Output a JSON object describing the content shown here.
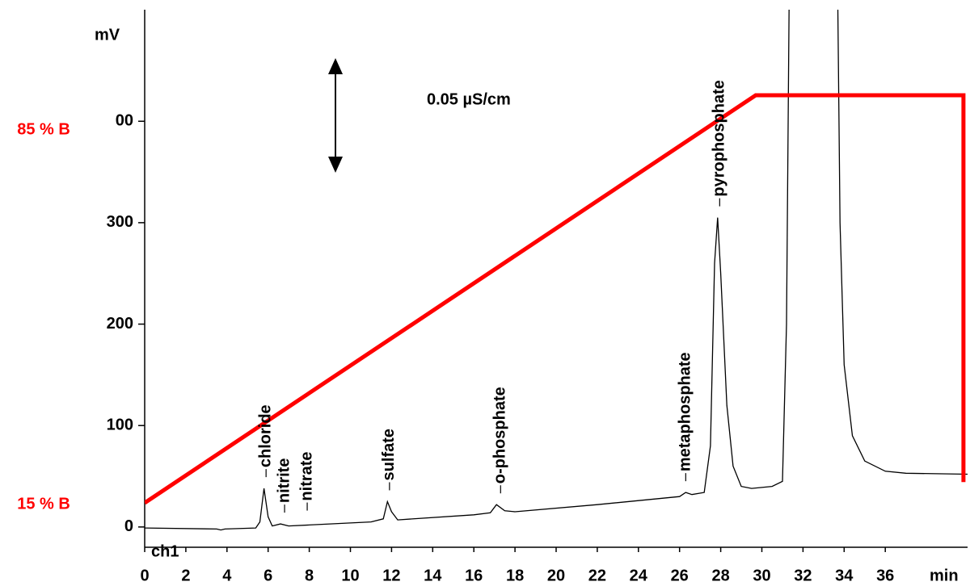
{
  "chart_data": {
    "type": "line",
    "y_label": "mV",
    "x_label": "min",
    "scale_label": "0.05 µS/cm",
    "xlim": [
      0,
      40
    ],
    "xticks": [
      0,
      2,
      4,
      6,
      8,
      10,
      12,
      14,
      16,
      18,
      20,
      22,
      24,
      26,
      28,
      30,
      32,
      34,
      36
    ],
    "ylim": [
      -20,
      510
    ],
    "yticks": [
      0,
      100,
      200,
      300,
      {
        "value": 400,
        "label": "00"
      }
    ],
    "y2lim": [
      7,
      107.5
    ],
    "y2ticks": [
      {
        "value": 15,
        "label": "15 % B"
      },
      {
        "value": 85,
        "label": "85 % B"
      }
    ],
    "series": [
      {
        "name": "ch1",
        "color": "#000000",
        "x": [
          0,
          3.5,
          3.7,
          3.9,
          5.4,
          5.6,
          5.8,
          6.0,
          6.2,
          6.6,
          7,
          8,
          11,
          11.6,
          11.8,
          12.0,
          12.3,
          16,
          16.8,
          17.1,
          17.5,
          18,
          22,
          26,
          26.3,
          26.6,
          27.2,
          27.5,
          27.7,
          27.85,
          28,
          28.3,
          28.6,
          29,
          29.5,
          30.5,
          31,
          31.2,
          31.4,
          33.6,
          33.8,
          34,
          34.4,
          35,
          36,
          37,
          40
        ],
        "values": [
          -1,
          -2,
          -3,
          -2,
          -1,
          5,
          38,
          10,
          1,
          3,
          1,
          2,
          5,
          8,
          25,
          15,
          7,
          12,
          14,
          22,
          16,
          15,
          22,
          30,
          34,
          32,
          34,
          80,
          260,
          305,
          250,
          120,
          60,
          40,
          38,
          40,
          45,
          200,
          700,
          700,
          300,
          160,
          90,
          65,
          55,
          53,
          52
        ]
      },
      {
        "color": "#ff0000",
        "axis": "y2",
        "x": [
          0,
          29.7,
          39.8,
          39.8
        ],
        "values": [
          15.3,
          91.5,
          91.5,
          19.2
        ]
      }
    ],
    "annotations": [
      {
        "text": "chloride",
        "x": 5.9
      },
      {
        "text": "nitrite",
        "x": 6.8
      },
      {
        "text": "nitrate",
        "x": 7.9
      },
      {
        "text": "sulfate",
        "x": 11.9
      },
      {
        "text": "o-phosphate",
        "x": 17.3
      },
      {
        "text": "metaphosphate",
        "x": 26.3
      },
      {
        "text": "pyrophosphate",
        "x": 27.95
      }
    ]
  }
}
